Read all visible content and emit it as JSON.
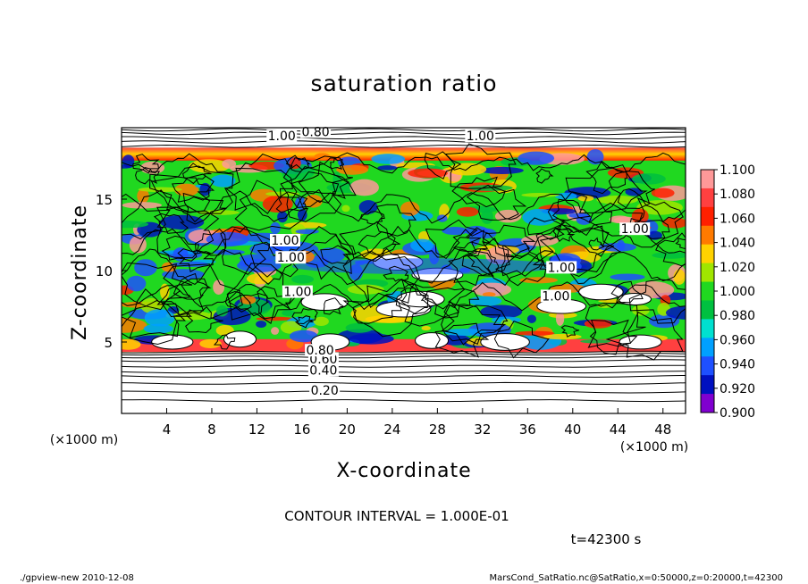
{
  "chart_data": {
    "type": "heatmap",
    "title": "saturation ratio",
    "xlabel": "X-coordinate",
    "ylabel": "Z-coordinate",
    "x_unit": "(×1000 m)",
    "z_unit": "(×1000 m)",
    "xlim": [
      0,
      50
    ],
    "ylim": [
      0,
      20
    ],
    "x_ticks": [
      "4",
      "8",
      "12",
      "16",
      "20",
      "24",
      "28",
      "32",
      "36",
      "40",
      "44",
      "48"
    ],
    "y_ticks": [
      "5",
      "10",
      "15"
    ],
    "colorbar": {
      "min": 0.9,
      "max": 1.1,
      "labels": [
        "1.100",
        "1.080",
        "1.060",
        "1.040",
        "1.020",
        "1.000",
        "0.980",
        "0.960",
        "0.940",
        "0.920",
        "0.900"
      ],
      "colors": [
        "#ff9999",
        "#ff4040",
        "#ff2000",
        "#ff7a00",
        "#ffd200",
        "#a0e600",
        "#20d820",
        "#00c040",
        "#00e0d0",
        "#00a0ff",
        "#1e50ff",
        "#0010c0",
        "#8000d0"
      ]
    },
    "contour_labels": [
      {
        "text": "0.20",
        "x": 18.0,
        "z": 1.5
      },
      {
        "text": "0.40",
        "x": 17.9,
        "z": 2.9
      },
      {
        "text": "0.60",
        "x": 17.9,
        "z": 3.7
      },
      {
        "text": "0.80",
        "x": 17.6,
        "z": 4.3
      },
      {
        "text": "1.00",
        "x": 15.6,
        "z": 8.4
      },
      {
        "text": "1.00",
        "x": 15.0,
        "z": 10.8
      },
      {
        "text": "1.00",
        "x": 14.5,
        "z": 12.0
      },
      {
        "text": "1.00",
        "x": 39.0,
        "z": 10.1
      },
      {
        "text": "1.00",
        "x": 38.5,
        "z": 8.1
      },
      {
        "text": "1.00",
        "x": 45.5,
        "z": 12.8
      },
      {
        "text": "1.00",
        "x": 31.8,
        "z": 19.3
      },
      {
        "text": "1.00",
        "x": 14.2,
        "z": 19.3
      },
      {
        "text": "0.80",
        "x": 17.2,
        "z": 19.6
      }
    ],
    "contour_interval": "CONTOUR INTERVAL = 1.000E-01",
    "time_label": "t=42300 s"
  },
  "footer": {
    "left": "./gpview-new  2010-12-08",
    "right": "MarsCond_SatRatio.nc@SatRatio,x=0:50000,z=0:20000,t=42300"
  }
}
